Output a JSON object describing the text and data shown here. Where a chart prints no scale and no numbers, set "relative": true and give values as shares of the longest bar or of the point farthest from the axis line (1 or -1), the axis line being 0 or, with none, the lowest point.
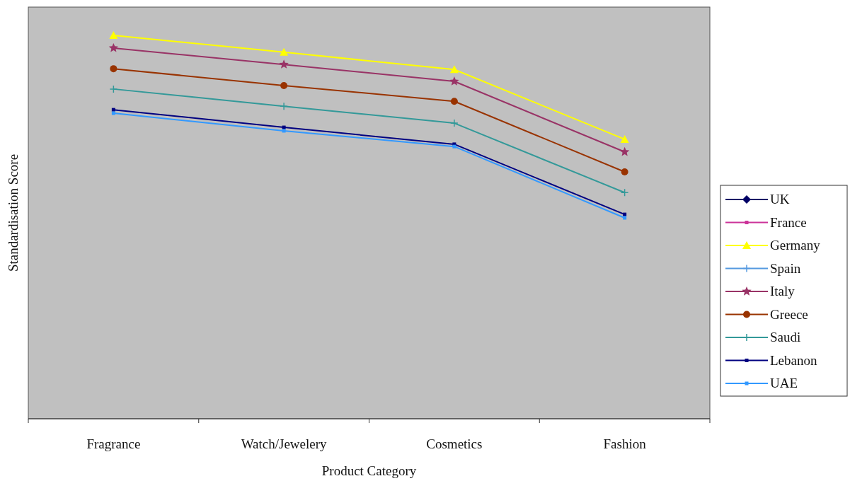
{
  "chart_data": {
    "type": "line",
    "relative": true,
    "xlabel": "Product Category",
    "ylabel": "Standardisation Score",
    "categories": [
      "Fragrance",
      "Watch/Jewelery",
      "Cosmetics",
      "Fashion"
    ],
    "legend": "right",
    "series": [
      {
        "name": "UK",
        "color": "#000066",
        "marker": "diamond",
        "values": [
          null,
          null,
          null,
          null
        ]
      },
      {
        "name": "France",
        "color": "#cc3399",
        "marker": "square",
        "values": [
          null,
          null,
          null,
          null
        ]
      },
      {
        "name": "Germany",
        "color": "#ffff00",
        "marker": "triangle",
        "values": [
          1,
          0.956,
          0.911,
          0.729
        ]
      },
      {
        "name": "Spain",
        "color": "#5599e0",
        "marker": "cross",
        "values": [
          null,
          null,
          null,
          null
        ]
      },
      {
        "name": "Italy",
        "color": "#993366",
        "marker": "star",
        "values": [
          0.967,
          0.924,
          0.88,
          0.696
        ]
      },
      {
        "name": "Greece",
        "color": "#993300",
        "marker": "circle",
        "values": [
          0.913,
          0.869,
          0.828,
          0.644
        ]
      },
      {
        "name": "Saudi",
        "color": "#339999",
        "marker": "cross",
        "values": [
          0.86,
          0.815,
          0.771,
          0.59
        ]
      },
      {
        "name": "Lebanon",
        "color": "#000080",
        "marker": "square",
        "values": [
          0.806,
          0.76,
          0.716,
          0.533
        ]
      },
      {
        "name": "UAE",
        "color": "#3399ff",
        "marker": "square",
        "values": [
          0.797,
          0.751,
          0.71,
          0.524
        ]
      }
    ]
  }
}
